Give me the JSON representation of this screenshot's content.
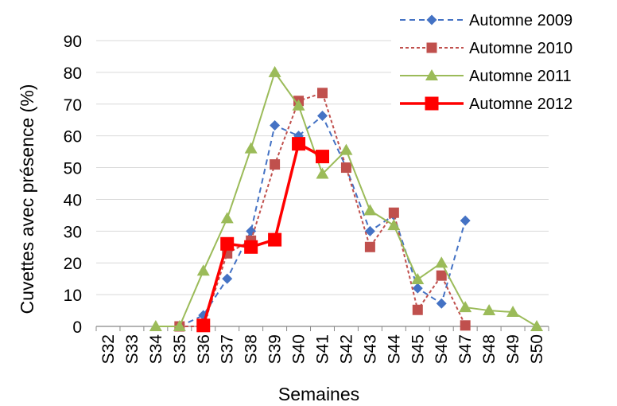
{
  "chart_data": {
    "type": "line",
    "title": "",
    "xlabel": "Semaines",
    "ylabel": "Cuvettes avec présence (%)",
    "ylim": [
      0,
      90
    ],
    "yticks": [
      0,
      10,
      20,
      30,
      40,
      50,
      60,
      70,
      80,
      90
    ],
    "grid": true,
    "legend_position": "top-right",
    "categories": [
      "S32",
      "S33",
      "S34",
      "S35",
      "S36",
      "S37",
      "S38",
      "S39",
      "S40",
      "S41",
      "S42",
      "S43",
      "S44",
      "S45",
      "S46",
      "S47",
      "S48",
      "S49",
      "S50"
    ],
    "series": [
      {
        "name": "Automne 2009",
        "color": "#4472C4",
        "line_style": "dashed",
        "marker": "diamond",
        "values": [
          null,
          null,
          null,
          0,
          3.5,
          15,
          30,
          63.3,
          60,
          66.3,
          50,
          30,
          35,
          12,
          7.2,
          33.3,
          null,
          null,
          null
        ]
      },
      {
        "name": "Automne 2010",
        "color": "#C0504D",
        "line_style": "dotted",
        "marker": "square",
        "values": [
          null,
          null,
          null,
          0,
          0,
          23,
          27,
          51,
          71,
          73.5,
          50,
          25,
          35.8,
          5.2,
          16,
          0.3,
          null,
          null,
          null
        ]
      },
      {
        "name": "Automne 2011",
        "color": "#9BBB59",
        "line_style": "solid",
        "marker": "triangle",
        "values": [
          null,
          null,
          0,
          0,
          17.5,
          34,
          56,
          80,
          69.5,
          48,
          55.5,
          36.5,
          31.8,
          14.8,
          20,
          6,
          5,
          4.5,
          0
        ]
      },
      {
        "name": "Automne 2012",
        "color": "#FF0000",
        "line_style": "solid-thick",
        "marker": "square-large",
        "values": [
          null,
          null,
          null,
          null,
          0.3,
          26,
          25,
          27.3,
          57.5,
          53.5,
          null,
          null,
          null,
          null,
          null,
          null,
          null,
          null,
          null
        ]
      }
    ]
  }
}
